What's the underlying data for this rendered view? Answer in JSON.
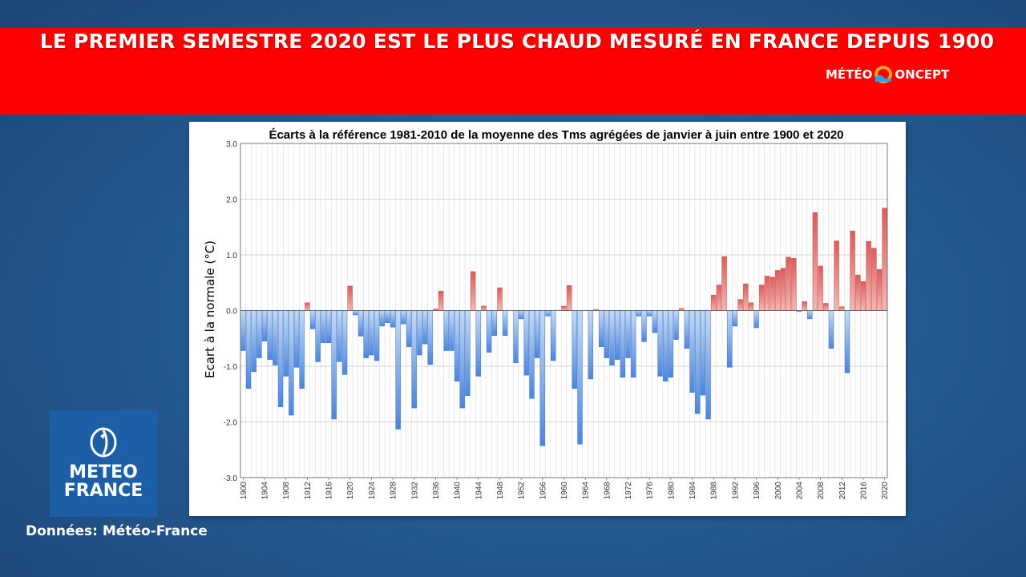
{
  "banner": {
    "title": "LE PREMIER SEMESTRE 2020 EST LE PLUS CHAUD MESURÉ EN FRANCE DEPUIS 1900",
    "brand_left": "MÉTÉO",
    "brand_right": "ONCEPT",
    "brand_icon": "sun-wave-icon",
    "color": "#ff0000"
  },
  "logo": {
    "line1": "METEO",
    "line2": "FRANCE",
    "icon": "meteo-france-emblem-icon",
    "color": "#1d5fa6"
  },
  "source": "Données: Météo-France",
  "chart_data": {
    "type": "bar",
    "title": "Écarts à la référence 1981-2010 de la moyenne des Tms agrégées de janvier à juin entre 1900 et 2020",
    "xlabel": "",
    "ylabel": "Ecart à la normale (°C)",
    "ylim": [
      -3.0,
      3.0
    ],
    "yticks": [
      "3.0",
      "2.0",
      "1.0",
      "0.0",
      "-1.0",
      "-2.0",
      "-3.0"
    ],
    "grid": true,
    "legend": "none",
    "colors": {
      "positive": "#e05a5a",
      "negative": "#4a86e0"
    },
    "x_start": 1900,
    "x_end": 2020,
    "x_tick_every": 4,
    "values": [
      -0.72,
      -1.4,
      -1.1,
      -0.85,
      -0.55,
      -0.88,
      -0.98,
      -1.73,
      -1.18,
      -1.88,
      -1.02,
      -1.4,
      0.14,
      -0.33,
      -0.92,
      -0.58,
      -0.58,
      -1.95,
      -0.92,
      -1.15,
      0.44,
      -0.08,
      -0.46,
      -0.85,
      -0.8,
      -0.9,
      -0.28,
      -0.22,
      -0.3,
      -2.13,
      -0.24,
      -0.65,
      -1.75,
      -0.8,
      -0.6,
      -0.97,
      0.03,
      0.35,
      -0.72,
      -0.72,
      -1.27,
      -1.75,
      -1.53,
      0.7,
      -1.18,
      0.08,
      -0.75,
      -0.45,
      0.41,
      -0.45,
      0.0,
      -0.94,
      -0.15,
      -1.16,
      -1.58,
      -0.85,
      -2.43,
      -0.1,
      -0.9,
      0.0,
      0.08,
      0.45,
      -1.4,
      -2.4,
      0.0,
      -1.23,
      0.02,
      -0.65,
      -0.85,
      -0.98,
      -0.88,
      -1.2,
      -0.85,
      -1.2,
      -0.1,
      -0.56,
      -0.1,
      -0.4,
      -1.18,
      -1.27,
      -1.2,
      -0.52,
      0.04,
      -0.68,
      -1.47,
      -1.85,
      -1.52,
      -1.95,
      0.28,
      0.46,
      0.97,
      -1.02,
      -0.28,
      0.2,
      0.48,
      0.14,
      -0.31,
      0.46,
      0.62,
      0.6,
      0.72,
      0.76,
      0.96,
      0.94,
      -0.02,
      0.16,
      -0.15,
      1.76,
      0.8,
      0.13,
      -0.68,
      1.25,
      0.07,
      -1.12,
      1.43,
      0.64,
      0.52,
      1.24,
      1.12,
      0.74,
      1.84
    ]
  }
}
